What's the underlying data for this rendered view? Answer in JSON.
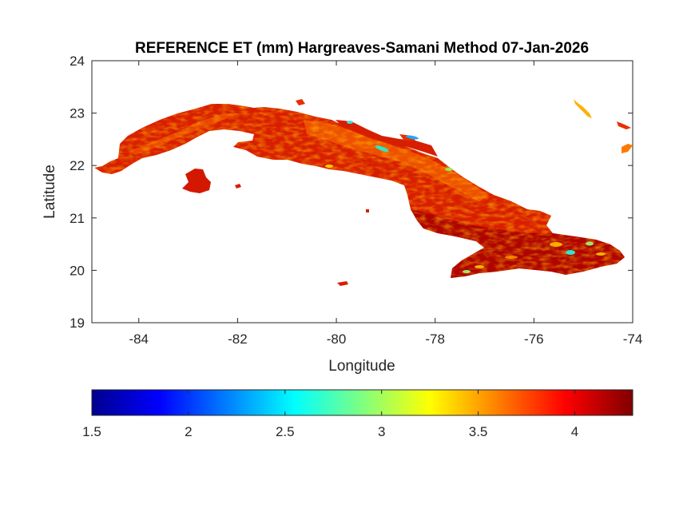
{
  "title": "REFERENCE ET (mm) Hargreaves-Samani Method  07-Jan-2026",
  "map": {
    "xlabel": "Longitude",
    "ylabel": "Latitude",
    "xlim": [
      -84.95,
      -74
    ],
    "ylim": [
      19,
      24
    ],
    "xticks": [
      -84,
      -82,
      -80,
      -78,
      -76,
      -74
    ],
    "yticks": [
      19,
      20,
      21,
      22,
      23,
      24
    ],
    "xtick_labels": [
      "-84",
      "-82",
      "-80",
      "-78",
      "-76",
      "-74"
    ],
    "ytick_labels": [
      "19",
      "20",
      "21",
      "22",
      "23",
      "24"
    ],
    "background": "#ffffff",
    "land_base_color": "#d81e00",
    "dark_color": "#a80000",
    "light_color": "#ff8a00",
    "highlight_color": "#2ee6c8"
  },
  "colorbar": {
    "min": 1.5,
    "max": 4.3,
    "ticks": [
      1.5,
      2,
      2.5,
      3,
      3.5,
      4
    ],
    "tick_labels": [
      "1.5",
      "2",
      "2.5",
      "3",
      "3.5",
      "4"
    ],
    "colormap": "jet"
  }
}
